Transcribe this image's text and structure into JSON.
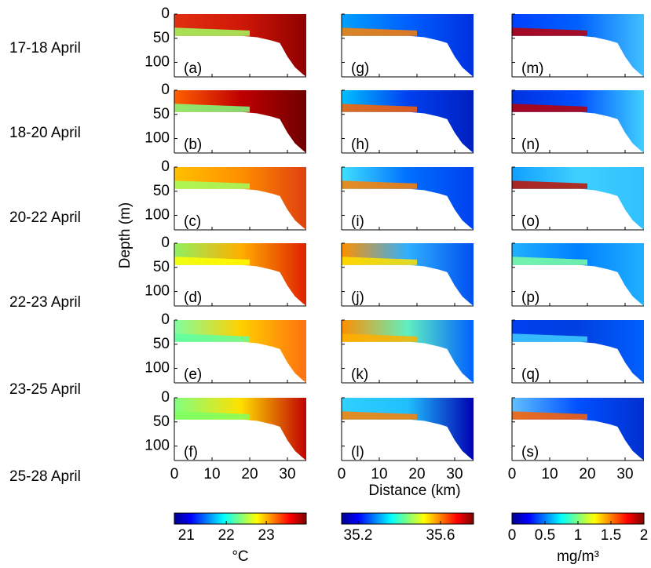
{
  "figure": {
    "row_labels": [
      "17-18 April",
      "18-20 April",
      "20-22 April",
      "22-23 April",
      "23-25 April",
      "25-28 April"
    ],
    "y_label": "Depth (m)",
    "x_label": "Distance (km)",
    "ylim": [
      0,
      130
    ],
    "yticks": [
      0,
      50,
      100
    ],
    "xlim": [
      0,
      35
    ],
    "xticks": [
      0,
      10,
      20,
      30
    ],
    "columns": [
      {
        "panels": [
          "(a)",
          "(b)",
          "(c)",
          "(d)",
          "(e)",
          "(f)"
        ],
        "colorbar": {
          "lim": [
            20.7,
            24.0
          ],
          "ticks": [
            21,
            22,
            23
          ],
          "unit": "°C"
        }
      },
      {
        "panels": [
          "(g)",
          "(h)",
          "(i)",
          "(j)",
          "(k)",
          "(l)"
        ],
        "colorbar": {
          "lim": [
            35.12,
            35.76
          ],
          "ticks": [
            35.2,
            35.6
          ],
          "unit": null
        }
      },
      {
        "panels": [
          "(m)",
          "(n)",
          "(o)",
          "(p)",
          "(q)",
          "(s)"
        ],
        "colorbar": {
          "lim": [
            0,
            2
          ],
          "ticks": [
            0,
            0.5,
            1,
            1.5,
            2
          ],
          "unit": "mg/m³"
        }
      }
    ]
  }
}
